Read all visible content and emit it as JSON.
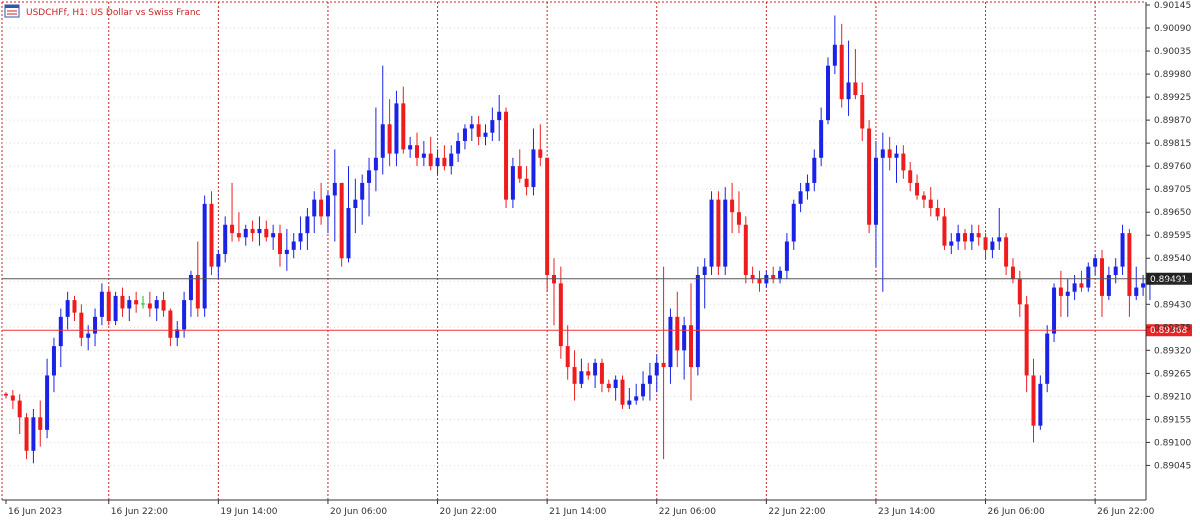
{
  "header": {
    "symbol_line": "USDCHFf, H1:  US Dollar vs Swiss Franc",
    "icon": "chart-window-icon"
  },
  "colors": {
    "bull": "#1a22e6",
    "bear": "#ee1c1c",
    "doji": "#22bb22",
    "grid_dash": "#cc2222",
    "grid_dot": "#dcdcdc",
    "current_price_line": "#555555",
    "level_line": "#ee3333",
    "background": "#ffffff"
  },
  "chart_data": {
    "type": "candlestick",
    "symbol": "USDCHFf",
    "timeframe": "H1",
    "description": "US Dollar vs Swiss Franc",
    "ylim": [
      0.89015,
      0.90145
    ],
    "y_ticks": [
      "0.90145",
      "0.90090",
      "0.90035",
      "0.89980",
      "0.89925",
      "0.89870",
      "0.89815",
      "0.89760",
      "0.89705",
      "0.89650",
      "0.89595",
      "0.89540",
      "0.89485",
      "0.89430",
      "0.89375",
      "0.89320",
      "0.89265",
      "0.89210",
      "0.89155",
      "0.89100",
      "0.89045"
    ],
    "x_ticks": [
      {
        "label": "16 Jun 2023",
        "bar": 0
      },
      {
        "label": "16 Jun 22:00",
        "bar": 15
      },
      {
        "label": "19 Jun 14:00",
        "bar": 31
      },
      {
        "label": "20 Jun 06:00",
        "bar": 47
      },
      {
        "label": "20 Jun 22:00",
        "bar": 63
      },
      {
        "label": "21 Jun 14:00",
        "bar": 79
      },
      {
        "label": "22 Jun 06:00",
        "bar": 95
      },
      {
        "label": "22 Jun 22:00",
        "bar": 111
      },
      {
        "label": "23 Jun 14:00",
        "bar": 127
      },
      {
        "label": "26 Jun 06:00",
        "bar": 143
      },
      {
        "label": "26 Jun 22:00",
        "bar": 159
      }
    ],
    "current_price": {
      "value": 0.89491,
      "label": "0.89491"
    },
    "level_line": {
      "value": 0.89368,
      "label": "0.89368"
    },
    "candles": [
      [
        0.89216,
        0.8922,
        0.89205,
        0.89212
      ],
      [
        0.89212,
        0.89225,
        0.8918,
        0.892
      ],
      [
        0.892,
        0.89215,
        0.8912,
        0.8916
      ],
      [
        0.8916,
        0.8917,
        0.8906,
        0.8908
      ],
      [
        0.8908,
        0.8918,
        0.8905,
        0.8916
      ],
      [
        0.8916,
        0.892,
        0.8909,
        0.8913
      ],
      [
        0.8913,
        0.893,
        0.8911,
        0.8926
      ],
      [
        0.8926,
        0.8935,
        0.8922,
        0.8933
      ],
      [
        0.8933,
        0.8942,
        0.8928,
        0.894
      ],
      [
        0.894,
        0.8946,
        0.8937,
        0.8944
      ],
      [
        0.8944,
        0.8945,
        0.8939,
        0.8941
      ],
      [
        0.8941,
        0.8943,
        0.8933,
        0.8935
      ],
      [
        0.8935,
        0.8938,
        0.8932,
        0.8936
      ],
      [
        0.8936,
        0.8942,
        0.8933,
        0.894
      ],
      [
        0.894,
        0.8948,
        0.8938,
        0.8946
      ],
      [
        0.8946,
        0.8947,
        0.8938,
        0.8939
      ],
      [
        0.8939,
        0.8946,
        0.8938,
        0.8945
      ],
      [
        0.8945,
        0.8947,
        0.894,
        0.8942
      ],
      [
        0.8942,
        0.8945,
        0.8939,
        0.8944
      ],
      [
        0.8944,
        0.8946,
        0.8941,
        0.8943
      ],
      [
        0.8943,
        0.8945,
        0.8942,
        0.89432
      ],
      [
        0.89432,
        0.8946,
        0.894,
        0.8942
      ],
      [
        0.8942,
        0.8945,
        0.8939,
        0.8944
      ],
      [
        0.8944,
        0.8946,
        0.894,
        0.89415
      ],
      [
        0.89415,
        0.8942,
        0.8933,
        0.8935
      ],
      [
        0.8935,
        0.8939,
        0.8933,
        0.8937
      ],
      [
        0.8937,
        0.8946,
        0.8935,
        0.8944
      ],
      [
        0.8944,
        0.8951,
        0.894,
        0.895
      ],
      [
        0.895,
        0.8958,
        0.894,
        0.8942
      ],
      [
        0.8942,
        0.8969,
        0.894,
        0.8967
      ],
      [
        0.8967,
        0.897,
        0.895,
        0.8952
      ],
      [
        0.8952,
        0.8956,
        0.8949,
        0.8955
      ],
      [
        0.8955,
        0.8964,
        0.8953,
        0.8962
      ],
      [
        0.8962,
        0.8972,
        0.8958,
        0.896
      ],
      [
        0.896,
        0.8965,
        0.8958,
        0.8959
      ],
      [
        0.8959,
        0.8962,
        0.8957,
        0.8961
      ],
      [
        0.8961,
        0.8963,
        0.8958,
        0.896
      ],
      [
        0.896,
        0.8964,
        0.8957,
        0.8961
      ],
      [
        0.8961,
        0.8963,
        0.8958,
        0.8959
      ],
      [
        0.8959,
        0.8962,
        0.8956,
        0.896
      ],
      [
        0.896,
        0.8962,
        0.8952,
        0.8955
      ],
      [
        0.8955,
        0.8961,
        0.8951,
        0.8956
      ],
      [
        0.8956,
        0.896,
        0.8954,
        0.8958
      ],
      [
        0.8958,
        0.8964,
        0.8956,
        0.896
      ],
      [
        0.896,
        0.8966,
        0.8956,
        0.8964
      ],
      [
        0.8964,
        0.897,
        0.896,
        0.8968
      ],
      [
        0.8968,
        0.8972,
        0.8962,
        0.8964
      ],
      [
        0.8964,
        0.897,
        0.896,
        0.8969
      ],
      [
        0.8969,
        0.898,
        0.8958,
        0.8972
      ],
      [
        0.8972,
        0.8972,
        0.8952,
        0.8954
      ],
      [
        0.8954,
        0.8976,
        0.8953,
        0.8966
      ],
      [
        0.8966,
        0.8973,
        0.896,
        0.8968
      ],
      [
        0.8968,
        0.8974,
        0.8962,
        0.8972
      ],
      [
        0.8972,
        0.8978,
        0.8964,
        0.8975
      ],
      [
        0.8975,
        0.899,
        0.897,
        0.8978
      ],
      [
        0.8978,
        0.9,
        0.8974,
        0.8986
      ],
      [
        0.8986,
        0.8992,
        0.8976,
        0.8979
      ],
      [
        0.8979,
        0.8994,
        0.8976,
        0.8991
      ],
      [
        0.8991,
        0.8995,
        0.8979,
        0.898
      ],
      [
        0.898,
        0.8983,
        0.8978,
        0.8981
      ],
      [
        0.8981,
        0.8984,
        0.8976,
        0.8978
      ],
      [
        0.8978,
        0.8982,
        0.8976,
        0.8979
      ],
      [
        0.8979,
        0.8983,
        0.8975,
        0.8976
      ],
      [
        0.8976,
        0.898,
        0.8974,
        0.8978
      ],
      [
        0.8978,
        0.8981,
        0.8975,
        0.8976
      ],
      [
        0.8976,
        0.8981,
        0.8974,
        0.8979
      ],
      [
        0.8979,
        0.8984,
        0.8977,
        0.8982
      ],
      [
        0.8982,
        0.8986,
        0.898,
        0.8985
      ],
      [
        0.8985,
        0.8988,
        0.8982,
        0.8986
      ],
      [
        0.8986,
        0.8988,
        0.8981,
        0.8983
      ],
      [
        0.8983,
        0.8986,
        0.8981,
        0.8984
      ],
      [
        0.8984,
        0.899,
        0.8982,
        0.8987
      ],
      [
        0.8987,
        0.8993,
        0.8982,
        0.8989
      ],
      [
        0.8989,
        0.899,
        0.8966,
        0.8968
      ],
      [
        0.8968,
        0.8978,
        0.8966,
        0.8976
      ],
      [
        0.8976,
        0.898,
        0.8972,
        0.8973
      ],
      [
        0.8973,
        0.8976,
        0.8969,
        0.8971
      ],
      [
        0.8971,
        0.8985,
        0.8969,
        0.898
      ],
      [
        0.898,
        0.8986,
        0.8976,
        0.8978
      ],
      [
        0.8978,
        0.8978,
        0.8946,
        0.895
      ],
      [
        0.895,
        0.8954,
        0.8938,
        0.8948
      ],
      [
        0.8948,
        0.8952,
        0.893,
        0.8933
      ],
      [
        0.8933,
        0.8938,
        0.8925,
        0.8928
      ],
      [
        0.8928,
        0.8932,
        0.892,
        0.8924
      ],
      [
        0.8924,
        0.893,
        0.8923,
        0.8927
      ],
      [
        0.8927,
        0.8929,
        0.8925,
        0.8926
      ],
      [
        0.8926,
        0.893,
        0.8923,
        0.8929
      ],
      [
        0.8929,
        0.893,
        0.8922,
        0.8924
      ],
      [
        0.8924,
        0.8925,
        0.8922,
        0.8923
      ],
      [
        0.8923,
        0.8926,
        0.892,
        0.8925
      ],
      [
        0.8925,
        0.8926,
        0.8918,
        0.8919
      ],
      [
        0.8919,
        0.8923,
        0.8918,
        0.892
      ],
      [
        0.892,
        0.8924,
        0.8919,
        0.8921
      ],
      [
        0.8921,
        0.8927,
        0.892,
        0.8924
      ],
      [
        0.8924,
        0.8929,
        0.892,
        0.8926
      ],
      [
        0.8926,
        0.8931,
        0.8922,
        0.8929
      ],
      [
        0.8929,
        0.8952,
        0.8906,
        0.8928
      ],
      [
        0.8928,
        0.8942,
        0.8924,
        0.894
      ],
      [
        0.894,
        0.8946,
        0.8928,
        0.8932
      ],
      [
        0.8932,
        0.894,
        0.8925,
        0.8938
      ],
      [
        0.8938,
        0.8948,
        0.892,
        0.8928
      ],
      [
        0.8928,
        0.8952,
        0.8926,
        0.895
      ],
      [
        0.895,
        0.8954,
        0.8942,
        0.8952
      ],
      [
        0.8952,
        0.897,
        0.895,
        0.8968
      ],
      [
        0.8968,
        0.897,
        0.895,
        0.8952
      ],
      [
        0.8952,
        0.8971,
        0.895,
        0.8968
      ],
      [
        0.8968,
        0.8972,
        0.896,
        0.8965
      ],
      [
        0.8965,
        0.897,
        0.896,
        0.8962
      ],
      [
        0.8962,
        0.8964,
        0.8948,
        0.895
      ],
      [
        0.895,
        0.8952,
        0.8948,
        0.8949
      ],
      [
        0.8949,
        0.8951,
        0.8946,
        0.8948
      ],
      [
        0.8948,
        0.8951,
        0.8947,
        0.895
      ],
      [
        0.895,
        0.8952,
        0.8948,
        0.8949
      ],
      [
        0.8949,
        0.8952,
        0.8948,
        0.8951
      ],
      [
        0.8951,
        0.896,
        0.8949,
        0.8958
      ],
      [
        0.8958,
        0.8968,
        0.8956,
        0.8967
      ],
      [
        0.8967,
        0.8972,
        0.8965,
        0.897
      ],
      [
        0.897,
        0.8974,
        0.8968,
        0.8972
      ],
      [
        0.8972,
        0.898,
        0.897,
        0.8978
      ],
      [
        0.8978,
        0.899,
        0.8976,
        0.8987
      ],
      [
        0.8987,
        0.9002,
        0.8986,
        0.9
      ],
      [
        0.9,
        0.9012,
        0.8998,
        0.9005
      ],
      [
        0.9005,
        0.901,
        0.899,
        0.8992
      ],
      [
        0.8992,
        0.9006,
        0.8988,
        0.8996
      ],
      [
        0.8996,
        0.9004,
        0.8992,
        0.8993
      ],
      [
        0.8993,
        0.8996,
        0.8982,
        0.8985
      ],
      [
        0.8985,
        0.8987,
        0.896,
        0.8962
      ],
      [
        0.8962,
        0.8982,
        0.8952,
        0.8978
      ],
      [
        0.8978,
        0.8984,
        0.8946,
        0.898
      ],
      [
        0.898,
        0.8983,
        0.8975,
        0.8978
      ],
      [
        0.8978,
        0.8981,
        0.8972,
        0.8979
      ],
      [
        0.8979,
        0.8981,
        0.8973,
        0.8975
      ],
      [
        0.8975,
        0.8977,
        0.897,
        0.8972
      ],
      [
        0.8972,
        0.8974,
        0.8968,
        0.8969
      ],
      [
        0.8969,
        0.897,
        0.8966,
        0.8968
      ],
      [
        0.8968,
        0.8971,
        0.8964,
        0.8966
      ],
      [
        0.8966,
        0.8968,
        0.8963,
        0.8964
      ],
      [
        0.8964,
        0.8966,
        0.8956,
        0.8957
      ],
      [
        0.8957,
        0.896,
        0.8955,
        0.8958
      ],
      [
        0.8958,
        0.8962,
        0.8956,
        0.896
      ],
      [
        0.896,
        0.8961,
        0.8956,
        0.8958
      ],
      [
        0.8958,
        0.8962,
        0.8956,
        0.896
      ],
      [
        0.896,
        0.8962,
        0.8957,
        0.8959
      ],
      [
        0.8959,
        0.896,
        0.8954,
        0.8956
      ],
      [
        0.8956,
        0.8959,
        0.8954,
        0.8958
      ],
      [
        0.8958,
        0.8966,
        0.8956,
        0.8959
      ],
      [
        0.8959,
        0.896,
        0.895,
        0.8952
      ],
      [
        0.8952,
        0.8954,
        0.8948,
        0.8949
      ],
      [
        0.8949,
        0.8951,
        0.894,
        0.8943
      ],
      [
        0.8943,
        0.8945,
        0.8922,
        0.8926
      ],
      [
        0.8926,
        0.893,
        0.891,
        0.8914
      ],
      [
        0.8914,
        0.8926,
        0.8913,
        0.8924
      ],
      [
        0.8924,
        0.8938,
        0.8922,
        0.8936
      ],
      [
        0.8936,
        0.8948,
        0.8934,
        0.8947
      ],
      [
        0.8947,
        0.8951,
        0.894,
        0.8945
      ],
      [
        0.8945,
        0.8949,
        0.894,
        0.8946
      ],
      [
        0.8946,
        0.895,
        0.8944,
        0.8948
      ],
      [
        0.8948,
        0.8951,
        0.8946,
        0.8947
      ],
      [
        0.8947,
        0.8953,
        0.8946,
        0.8952
      ],
      [
        0.8952,
        0.8955,
        0.895,
        0.8954
      ],
      [
        0.8954,
        0.8956,
        0.894,
        0.8945
      ],
      [
        0.8945,
        0.8952,
        0.8944,
        0.895
      ],
      [
        0.895,
        0.8954,
        0.8948,
        0.8952
      ],
      [
        0.8952,
        0.8962,
        0.895,
        0.896
      ],
      [
        0.896,
        0.8961,
        0.894,
        0.8945
      ],
      [
        0.8945,
        0.8952,
        0.8944,
        0.8947
      ],
      [
        0.8947,
        0.895,
        0.8945,
        0.8948
      ],
      [
        0.8948,
        0.895,
        0.8944,
        0.8949
      ]
    ]
  }
}
